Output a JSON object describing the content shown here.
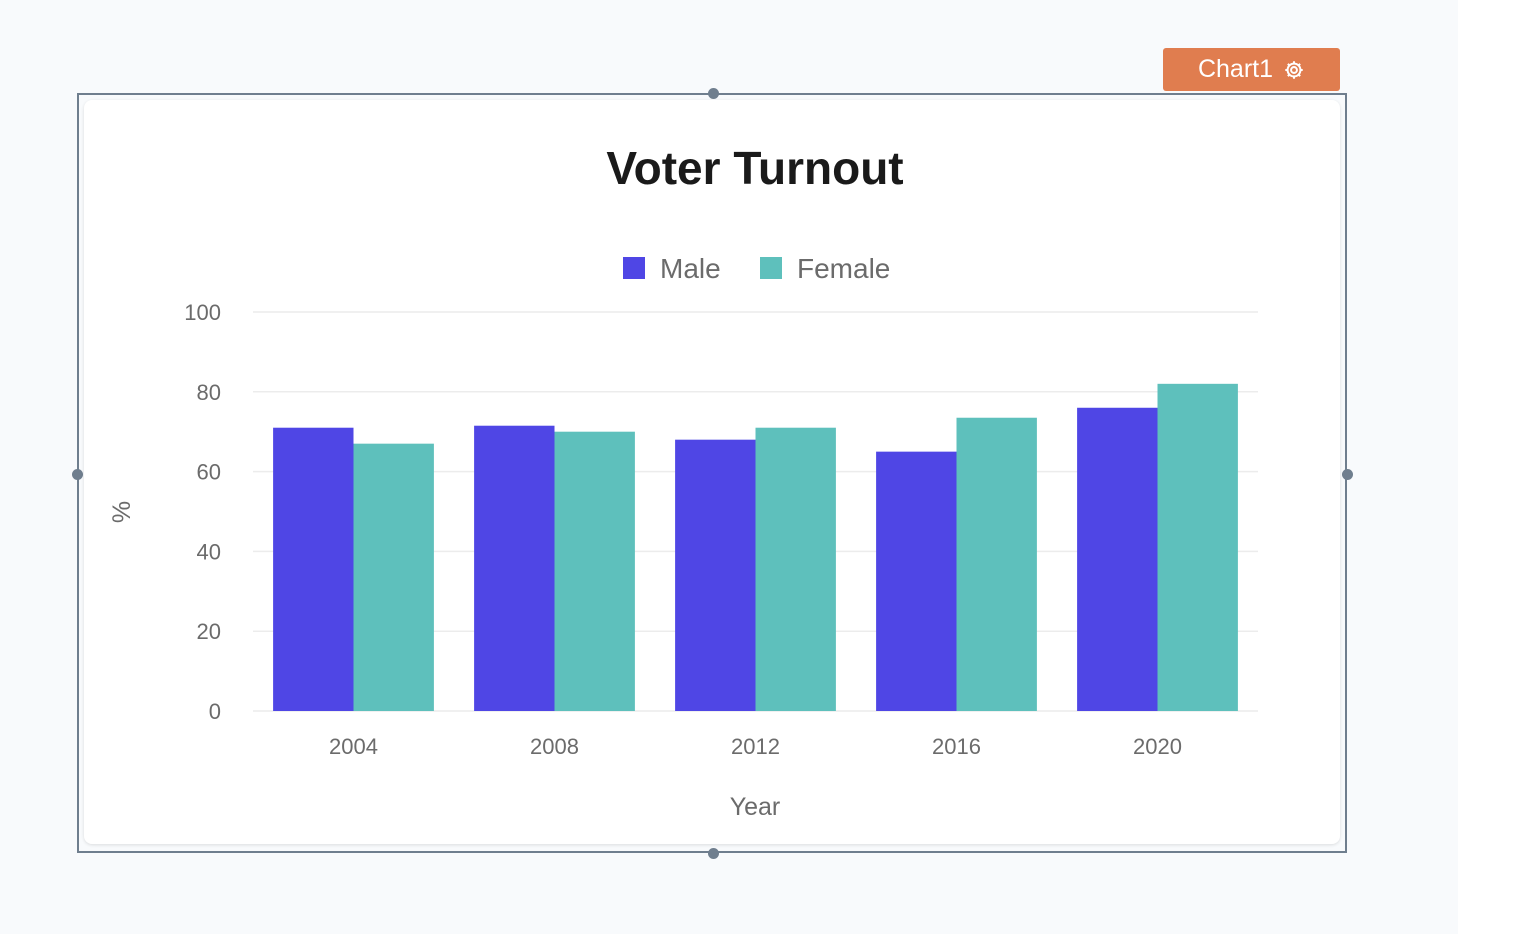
{
  "widget": {
    "name": "Chart1",
    "tag_icon": "gear-icon",
    "tag_color": "#e07d4f"
  },
  "chart_data": {
    "type": "bar",
    "title": "Voter Turnout",
    "xlabel": "Year",
    "ylabel": "%",
    "categories": [
      "2004",
      "2008",
      "2012",
      "2016",
      "2020"
    ],
    "series": [
      {
        "name": "Male",
        "color": "#4f46e5",
        "values": [
          71,
          71.5,
          68,
          65,
          76
        ]
      },
      {
        "name": "Female",
        "color": "#5ec0bc",
        "values": [
          67,
          70,
          71,
          73.5,
          82
        ]
      }
    ],
    "ylim": [
      0,
      100
    ],
    "yticks": [
      0,
      20,
      40,
      60,
      80,
      100
    ],
    "grid": true,
    "legend_position": "top-center"
  }
}
